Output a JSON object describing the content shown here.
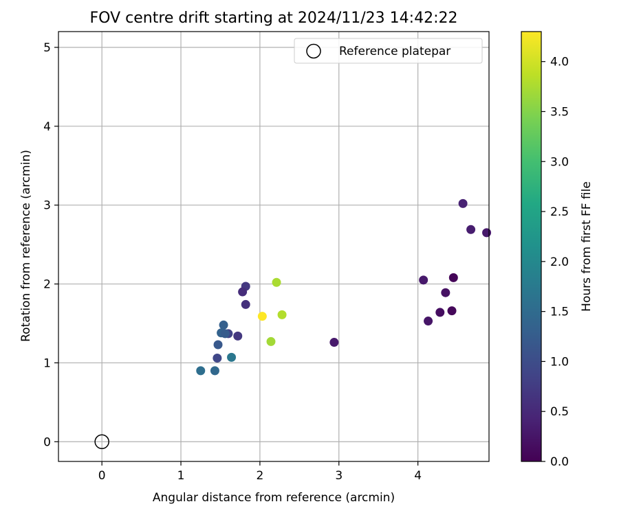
{
  "chart_data": {
    "type": "scatter",
    "title": "FOV centre drift starting at 2024/11/23 14:42:22",
    "xlabel": "Angular distance from reference (arcmin)",
    "ylabel": "Rotation from reference (arcmin)",
    "xlim": [
      -0.55,
      4.9
    ],
    "ylim": [
      -0.25,
      5.2
    ],
    "xticks": [
      0,
      1,
      2,
      3,
      4
    ],
    "yticks": [
      0,
      1,
      2,
      3,
      4,
      5
    ],
    "grid": true,
    "legend": {
      "placement": "top-right",
      "entries": [
        "Reference platepar"
      ]
    },
    "reference_point": {
      "x": 0,
      "y": 0,
      "marker": "open-circle",
      "edge_color": "#000000"
    },
    "colorbar": {
      "label": "Hours from first FF file",
      "colormap": "viridis",
      "range": [
        0,
        4.3
      ],
      "ticks": [
        0.0,
        0.5,
        1.0,
        1.5,
        2.0,
        2.5,
        3.0,
        3.5,
        4.0
      ],
      "tick_labels": [
        "0.0",
        "0.5",
        "1.0",
        "1.5",
        "2.0",
        "2.5",
        "3.0",
        "3.5",
        "4.0"
      ]
    },
    "points": [
      {
        "x": 4.45,
        "y": 2.08,
        "hours": 0.05
      },
      {
        "x": 4.43,
        "y": 1.66,
        "hours": 0.08
      },
      {
        "x": 4.28,
        "y": 1.64,
        "hours": 0.15
      },
      {
        "x": 4.35,
        "y": 1.89,
        "hours": 0.2
      },
      {
        "x": 4.13,
        "y": 1.53,
        "hours": 0.25
      },
      {
        "x": 4.07,
        "y": 2.05,
        "hours": 0.3
      },
      {
        "x": 4.87,
        "y": 2.65,
        "hours": 0.3
      },
      {
        "x": 4.67,
        "y": 2.69,
        "hours": 0.35
      },
      {
        "x": 4.57,
        "y": 3.02,
        "hours": 0.4
      },
      {
        "x": 2.94,
        "y": 1.26,
        "hours": 0.3
      },
      {
        "x": 1.82,
        "y": 1.97,
        "hours": 0.7
      },
      {
        "x": 1.78,
        "y": 1.9,
        "hours": 0.55
      },
      {
        "x": 1.82,
        "y": 1.74,
        "hours": 0.6
      },
      {
        "x": 1.72,
        "y": 1.34,
        "hours": 0.7
      },
      {
        "x": 1.6,
        "y": 1.37,
        "hours": 0.85
      },
      {
        "x": 1.46,
        "y": 1.06,
        "hours": 0.9
      },
      {
        "x": 1.47,
        "y": 1.23,
        "hours": 1.2
      },
      {
        "x": 1.51,
        "y": 1.38,
        "hours": 1.35
      },
      {
        "x": 1.56,
        "y": 1.37,
        "hours": 1.25
      },
      {
        "x": 1.54,
        "y": 1.48,
        "hours": 1.3
      },
      {
        "x": 1.43,
        "y": 0.9,
        "hours": 1.45
      },
      {
        "x": 1.25,
        "y": 0.9,
        "hours": 1.55
      },
      {
        "x": 1.64,
        "y": 1.07,
        "hours": 1.7
      },
      {
        "x": 2.21,
        "y": 2.02,
        "hours": 3.75
      },
      {
        "x": 2.28,
        "y": 1.61,
        "hours": 3.8
      },
      {
        "x": 2.14,
        "y": 1.27,
        "hours": 3.7
      },
      {
        "x": 2.03,
        "y": 1.59,
        "hours": 4.3
      }
    ]
  }
}
